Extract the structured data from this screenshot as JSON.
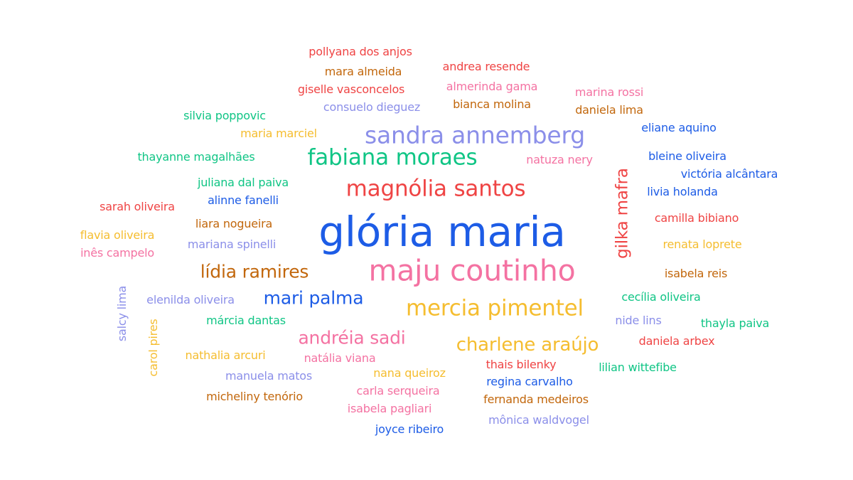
{
  "colors": {
    "red": "#ef4444",
    "blue": "#1d5ce6",
    "green": "#10c585",
    "pink": "#f472a2",
    "orange": "#c2670c",
    "yellow": "#f5bd2f",
    "periwinkle": "#8b8fe9"
  },
  "words": [
    {
      "text": "glória maria",
      "color": "blue"
    },
    {
      "text": "maju coutinho",
      "color": "pink"
    },
    {
      "text": "sandra annemberg",
      "color": "periwinkle"
    },
    {
      "text": "fabiana moraes",
      "color": "green"
    },
    {
      "text": "magnólia santos",
      "color": "red"
    },
    {
      "text": "mercia pimentel",
      "color": "yellow"
    },
    {
      "text": "gilka mafra",
      "color": "red"
    },
    {
      "text": "charlene araújo",
      "color": "yellow"
    },
    {
      "text": "lídia ramires",
      "color": "orange"
    },
    {
      "text": "mari palma",
      "color": "blue"
    },
    {
      "text": "andréia sadi",
      "color": "pink"
    },
    {
      "text": "pollyana dos anjos",
      "color": "red"
    },
    {
      "text": "mara almeida",
      "color": "orange"
    },
    {
      "text": "giselle vasconcelos",
      "color": "red"
    },
    {
      "text": "consuelo dieguez",
      "color": "periwinkle"
    },
    {
      "text": "andrea resende",
      "color": "red"
    },
    {
      "text": "almerinda gama",
      "color": "pink"
    },
    {
      "text": "bianca molina",
      "color": "orange"
    },
    {
      "text": "marina rossi",
      "color": "pink"
    },
    {
      "text": "daniela lima",
      "color": "orange"
    },
    {
      "text": "silvia poppovic",
      "color": "green"
    },
    {
      "text": "maria marciel",
      "color": "yellow"
    },
    {
      "text": "eliane aquino",
      "color": "blue"
    },
    {
      "text": "thayanne magalhães",
      "color": "green"
    },
    {
      "text": "natuza nery",
      "color": "pink"
    },
    {
      "text": "bleine oliveira",
      "color": "blue"
    },
    {
      "text": "victória alcântara",
      "color": "blue"
    },
    {
      "text": "juliana dal paiva",
      "color": "green"
    },
    {
      "text": "livia holanda",
      "color": "blue"
    },
    {
      "text": "alinne fanelli",
      "color": "blue"
    },
    {
      "text": "sarah oliveira",
      "color": "red"
    },
    {
      "text": "camilla bibiano",
      "color": "red"
    },
    {
      "text": "liara nogueira",
      "color": "orange"
    },
    {
      "text": "flavia oliveira",
      "color": "yellow"
    },
    {
      "text": "renata loprete",
      "color": "yellow"
    },
    {
      "text": "inês campelo",
      "color": "pink"
    },
    {
      "text": "mariana spinelli",
      "color": "periwinkle"
    },
    {
      "text": "isabela reis",
      "color": "orange"
    },
    {
      "text": "salcy lima",
      "color": "periwinkle"
    },
    {
      "text": "elenilda oliveira",
      "color": "periwinkle"
    },
    {
      "text": "cecília oliveira",
      "color": "green"
    },
    {
      "text": "márcia dantas",
      "color": "green"
    },
    {
      "text": "nide lins",
      "color": "periwinkle"
    },
    {
      "text": "thayla paiva",
      "color": "green"
    },
    {
      "text": "carol pires",
      "color": "yellow"
    },
    {
      "text": "daniela arbex",
      "color": "red"
    },
    {
      "text": "nathalia arcuri",
      "color": "yellow"
    },
    {
      "text": "natália viana",
      "color": "pink"
    },
    {
      "text": "thais bilenky",
      "color": "red"
    },
    {
      "text": "lilian wittefibe",
      "color": "green"
    },
    {
      "text": "manuela matos",
      "color": "periwinkle"
    },
    {
      "text": "nana queiroz",
      "color": "yellow"
    },
    {
      "text": "regina carvalho",
      "color": "blue"
    },
    {
      "text": "carla serqueira",
      "color": "pink"
    },
    {
      "text": "micheliny tenório",
      "color": "orange"
    },
    {
      "text": "fernanda medeiros",
      "color": "orange"
    },
    {
      "text": "isabela pagliari",
      "color": "pink"
    },
    {
      "text": "mônica waldvogel",
      "color": "periwinkle"
    },
    {
      "text": "joyce ribeiro",
      "color": "blue"
    }
  ]
}
